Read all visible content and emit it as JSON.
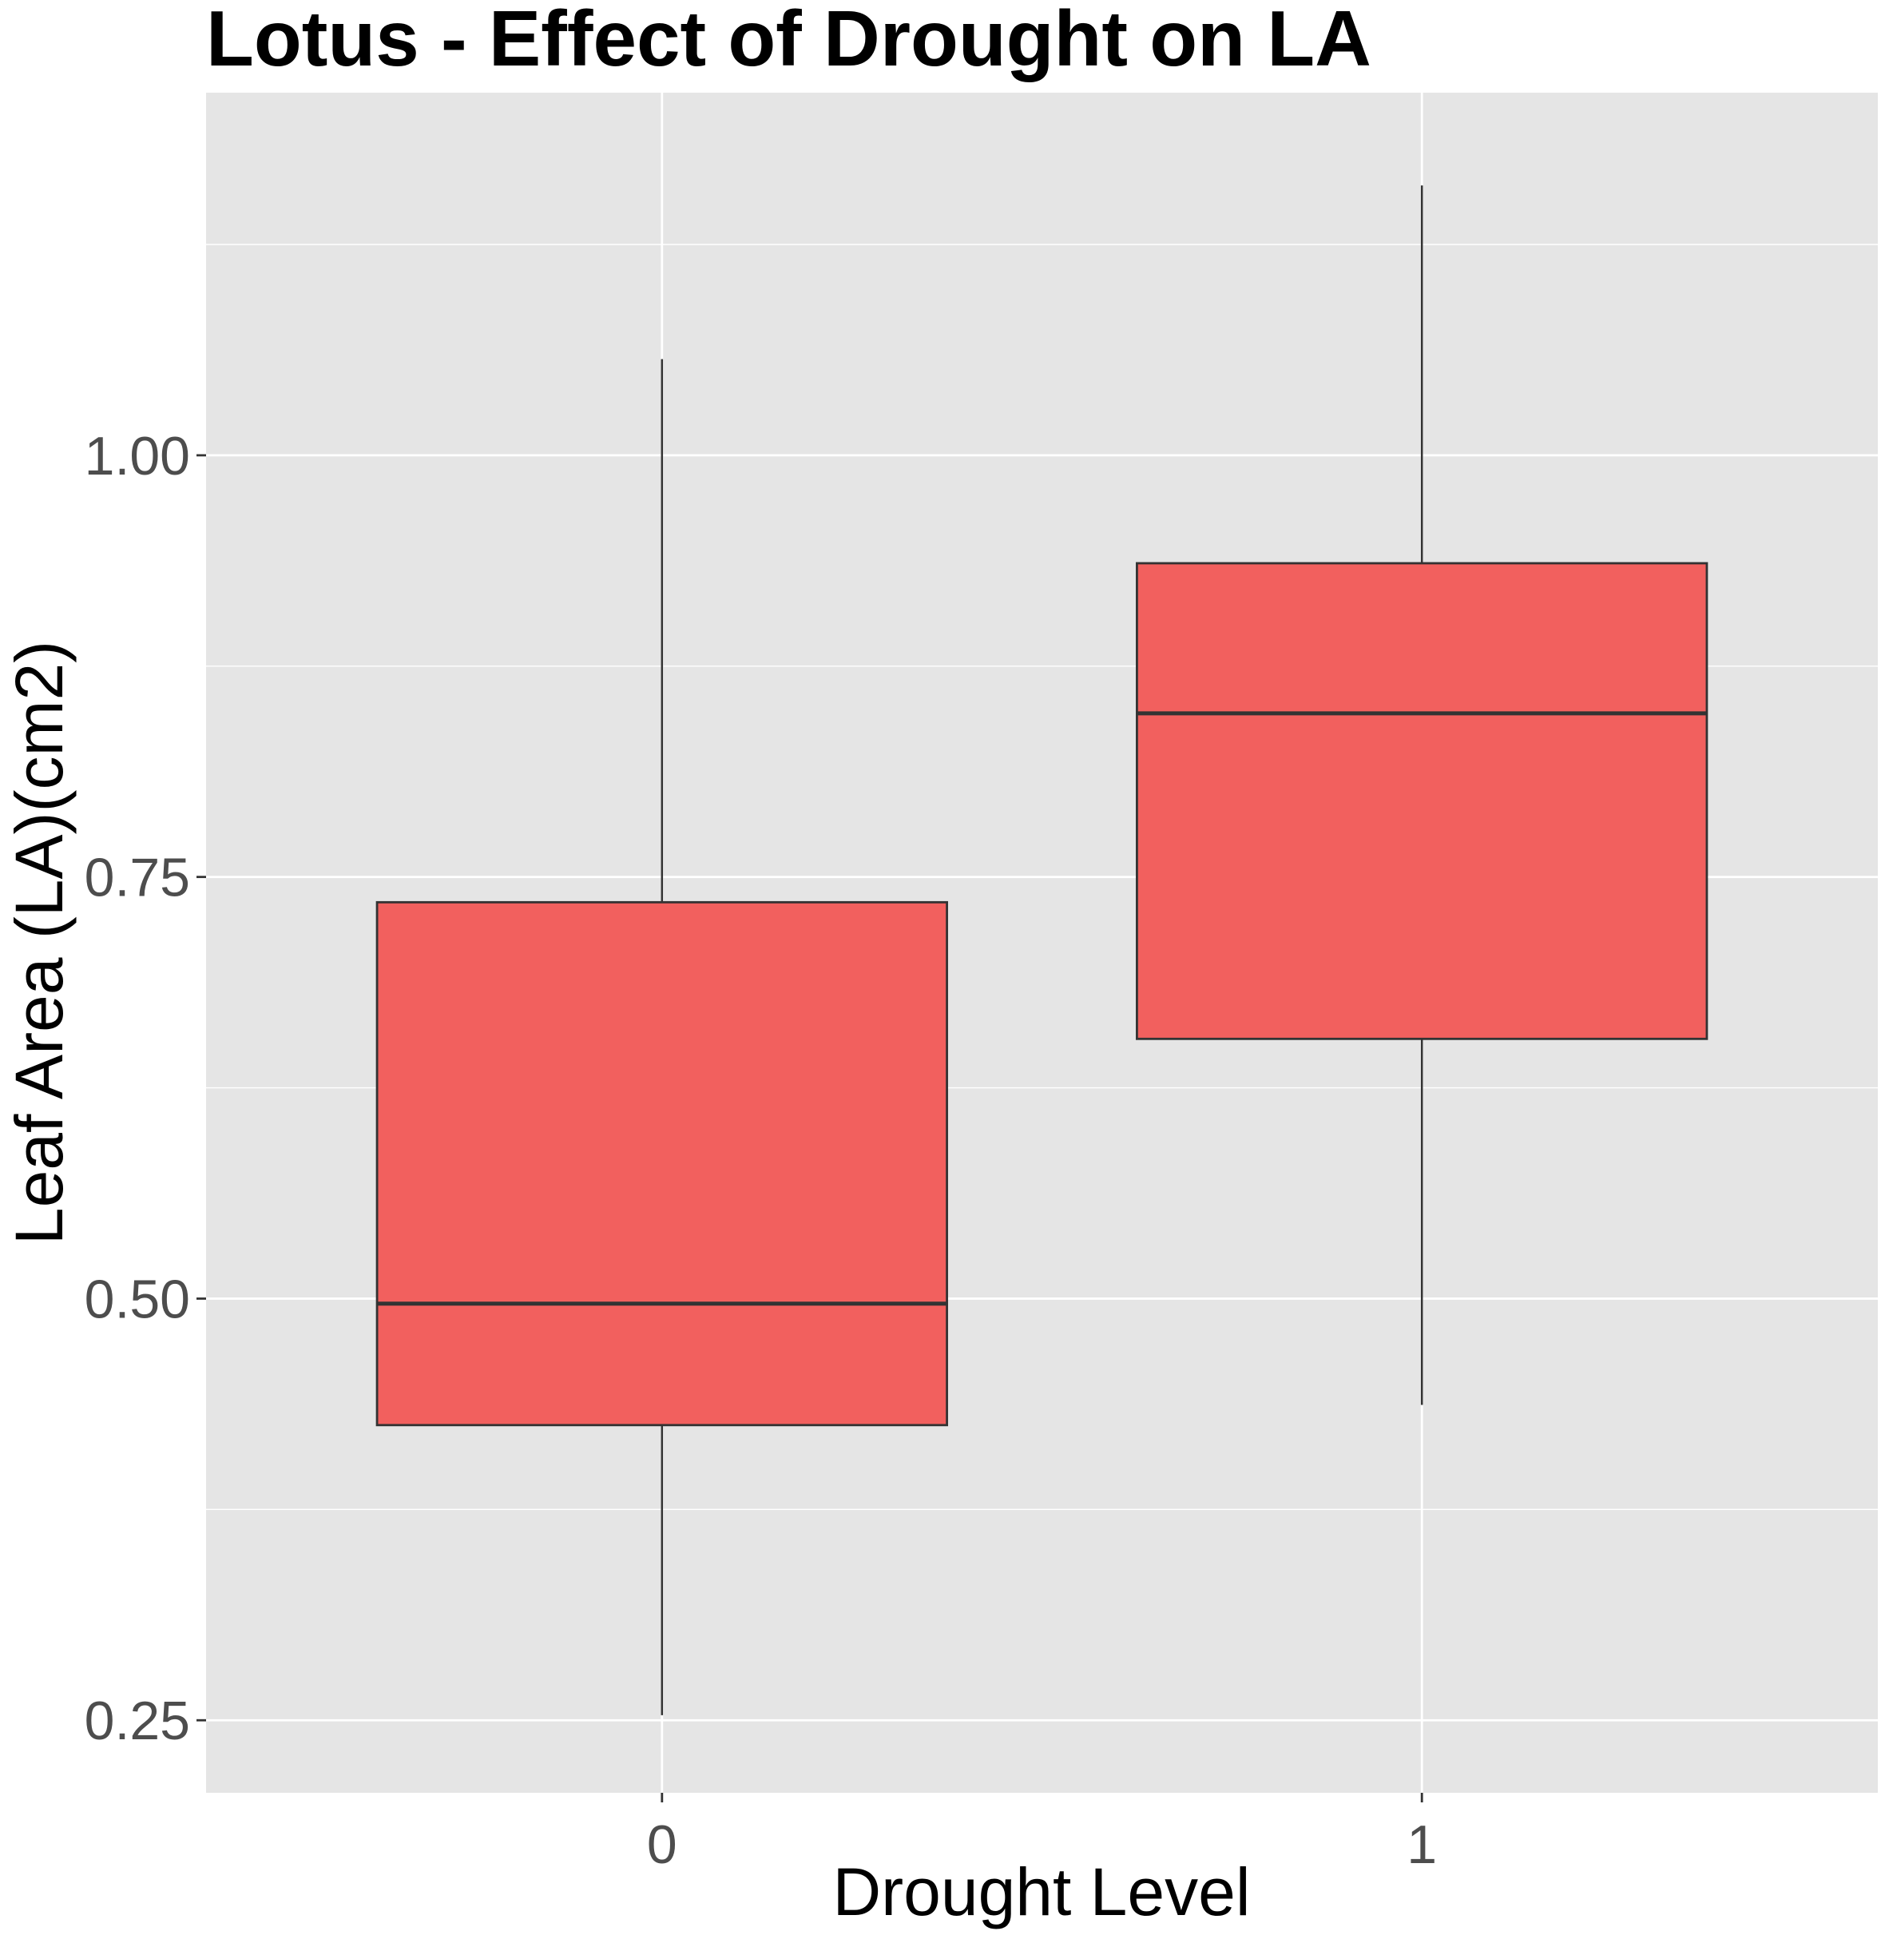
{
  "chart_data": {
    "type": "boxplot",
    "title": "Lotus - Effect of Drought on LA",
    "xlabel": "Drought Level",
    "ylabel": "Leaf Area (LA)(cm2)",
    "categories": [
      "0",
      "1"
    ],
    "boxes": [
      {
        "category": "0",
        "whisker_low": 0.253,
        "q1": 0.425,
        "median": 0.497,
        "q3": 0.735,
        "whisker_high": 1.057
      },
      {
        "category": "1",
        "whisker_low": 0.437,
        "q1": 0.654,
        "median": 0.847,
        "q3": 0.936,
        "whisker_high": 1.16
      }
    ],
    "ylim": [
      0.207,
      1.215
    ],
    "yticks": [
      0.25,
      0.5,
      0.75,
      1.0
    ],
    "ytick_labels": [
      "0.25",
      "0.50",
      "0.75",
      "1.00"
    ],
    "grid": true,
    "legend": "none",
    "colors": {
      "box_fill": "#f2605e",
      "box_stroke": "#333333",
      "panel_bg": "#e5e5e5",
      "grid": "#ffffff",
      "tick_label": "#4d4d4d"
    }
  }
}
